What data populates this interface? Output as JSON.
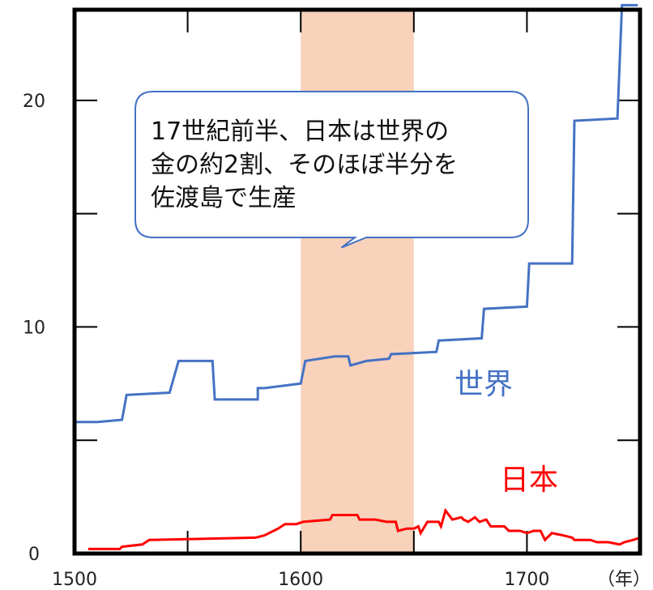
{
  "chart_data": {
    "type": "line",
    "xlim": [
      1500,
      1750
    ],
    "ylim": [
      0,
      24
    ],
    "x_ticks": [
      1500,
      1600,
      1700
    ],
    "y_ticks": [
      0,
      10,
      20
    ],
    "x_tick_labels": [
      "1500",
      "1600",
      "1700"
    ],
    "y_tick_labels": [
      "0",
      "10",
      "20"
    ],
    "x_unit_label": "（年）",
    "grid": false,
    "highlight_band": {
      "x_start": 1600,
      "x_end": 1650,
      "color": "#f8d2bb"
    },
    "annotation": {
      "lines": [
        "17世紀前半、日本は世界の",
        "金の約2割、そのほぼ半分を",
        "佐渡島で生産"
      ],
      "pointer_x": 1618,
      "pointer_y": 13.5
    },
    "series": [
      {
        "name": "世界",
        "color": "#4472c4",
        "step": true,
        "points": [
          [
            1500,
            5.8
          ],
          [
            1510,
            5.8
          ],
          [
            1521,
            5.9
          ],
          [
            1521,
            5.9
          ],
          [
            1523,
            7.0
          ],
          [
            1542,
            7.1
          ],
          [
            1546,
            8.5
          ],
          [
            1561,
            8.5
          ],
          [
            1562,
            6.8
          ],
          [
            1581,
            6.8
          ],
          [
            1581,
            7.3
          ],
          [
            1584,
            7.3
          ],
          [
            1600,
            7.5
          ],
          [
            1602,
            8.5
          ],
          [
            1615,
            8.7
          ],
          [
            1621,
            8.7
          ],
          [
            1622,
            8.3
          ],
          [
            1629,
            8.5
          ],
          [
            1639,
            8.6
          ],
          [
            1640,
            8.8
          ],
          [
            1660,
            8.9
          ],
          [
            1661,
            9.4
          ],
          [
            1680,
            9.5
          ],
          [
            1681,
            10.8
          ],
          [
            1700,
            10.9
          ],
          [
            1701,
            12.8
          ],
          [
            1720,
            12.8
          ],
          [
            1721,
            19.1
          ],
          [
            1740,
            19.2
          ],
          [
            1742,
            24.8
          ],
          [
            1749,
            24.8
          ]
        ]
      },
      {
        "name": "日本",
        "color": "#ff0000",
        "step": false,
        "points": [
          [
            1506,
            0.2
          ],
          [
            1520,
            0.2
          ],
          [
            1521,
            0.3
          ],
          [
            1530,
            0.4
          ],
          [
            1533,
            0.6
          ],
          [
            1580,
            0.7
          ],
          [
            1584,
            0.8
          ],
          [
            1590,
            1.1
          ],
          [
            1593,
            1.3
          ],
          [
            1598,
            1.3
          ],
          [
            1601,
            1.4
          ],
          [
            1613,
            1.5
          ],
          [
            1614,
            1.7
          ],
          [
            1625,
            1.7
          ],
          [
            1626,
            1.5
          ],
          [
            1633,
            1.5
          ],
          [
            1638,
            1.4
          ],
          [
            1642,
            1.4
          ],
          [
            1643,
            1.0
          ],
          [
            1647,
            1.1
          ],
          [
            1650,
            1.1
          ],
          [
            1652,
            1.2
          ],
          [
            1653,
            0.9
          ],
          [
            1656,
            1.4
          ],
          [
            1661,
            1.4
          ],
          [
            1662,
            1.2
          ],
          [
            1664,
            1.9
          ],
          [
            1667,
            1.5
          ],
          [
            1671,
            1.6
          ],
          [
            1672,
            1.5
          ],
          [
            1674,
            1.4
          ],
          [
            1677,
            1.6
          ],
          [
            1679,
            1.4
          ],
          [
            1682,
            1.5
          ],
          [
            1684,
            1.2
          ],
          [
            1690,
            1.2
          ],
          [
            1692,
            1.0
          ],
          [
            1697,
            1.0
          ],
          [
            1700,
            0.9
          ],
          [
            1703,
            1.0
          ],
          [
            1706,
            1.0
          ],
          [
            1708,
            0.6
          ],
          [
            1711,
            0.9
          ],
          [
            1716,
            0.8
          ],
          [
            1720,
            0.7
          ],
          [
            1721,
            0.6
          ],
          [
            1728,
            0.6
          ],
          [
            1731,
            0.5
          ],
          [
            1736,
            0.5
          ],
          [
            1741,
            0.4
          ],
          [
            1743,
            0.5
          ],
          [
            1747,
            0.6
          ],
          [
            1750,
            0.7
          ]
        ]
      }
    ]
  }
}
